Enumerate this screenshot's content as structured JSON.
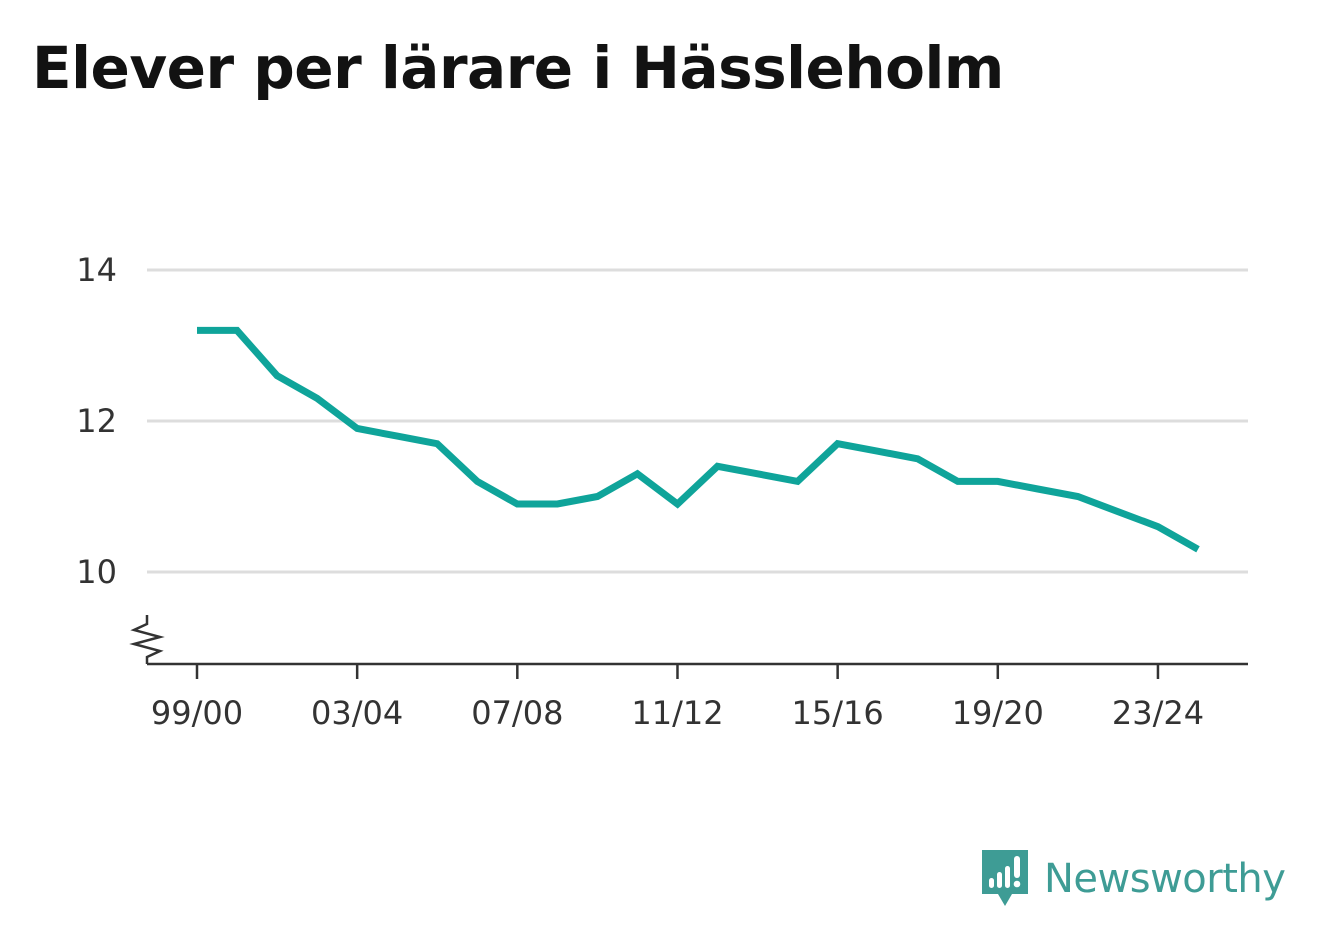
{
  "title": "Elever per lärare i Hässleholm",
  "brand": {
    "name": "Newsworthy",
    "icon": "newsworthy-logo-icon",
    "color": "#3e9c95"
  },
  "chart_data": {
    "type": "line",
    "title": "Elever per lärare i Hässleholm",
    "xlabel": "",
    "ylabel": "",
    "x": [
      "99/00",
      "00/01",
      "01/02",
      "02/03",
      "03/04",
      "04/05",
      "05/06",
      "06/07",
      "07/08",
      "08/09",
      "09/10",
      "10/11",
      "11/12",
      "12/13",
      "13/14",
      "14/15",
      "15/16",
      "16/17",
      "17/18",
      "18/19",
      "19/20",
      "20/21",
      "21/22",
      "22/23",
      "23/24",
      "24/25"
    ],
    "x_tick_labels": [
      "99/00",
      "03/04",
      "07/08",
      "11/12",
      "15/16",
      "19/20",
      "23/24"
    ],
    "series": [
      {
        "values": [
          13.2,
          13.2,
          12.6,
          12.3,
          11.9,
          11.8,
          11.7,
          11.2,
          10.9,
          10.9,
          11.0,
          11.3,
          10.9,
          11.4,
          11.3,
          11.2,
          11.7,
          11.6,
          11.5,
          11.2,
          11.2,
          11.1,
          11.0,
          10.8,
          10.6,
          10.3
        ],
        "color": "#0fa49a"
      }
    ],
    "y_ticks": [
      10,
      12,
      14
    ],
    "ylim": [
      8.8,
      14
    ],
    "grid": true,
    "axis_break": true
  }
}
